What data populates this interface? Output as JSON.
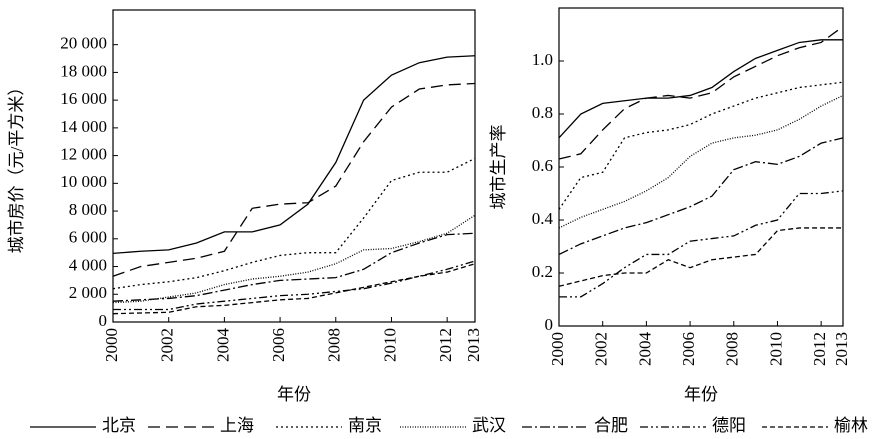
{
  "chart_data": [
    {
      "type": "line",
      "y_label": "城市房价（元/平方米）",
      "x_label": "年份",
      "x": [
        2000,
        2001,
        2002,
        2003,
        2004,
        2005,
        2006,
        2007,
        2008,
        2009,
        2010,
        2011,
        2012,
        2013
      ],
      "xlim": [
        2000,
        2013
      ],
      "xticks": [
        2000,
        2002,
        2004,
        2006,
        2008,
        2010,
        2012,
        2013
      ],
      "ylim": [
        0,
        22500
      ],
      "yticks": [
        0,
        {
          "value": 2000,
          "label": "2 000"
        },
        {
          "value": 4000,
          "label": "4 000"
        },
        {
          "value": 6000,
          "label": "6 000"
        },
        {
          "value": 8000,
          "label": "8 000"
        },
        {
          "value": 10000,
          "label": "10 000"
        },
        {
          "value": 12000,
          "label": "12 000"
        },
        {
          "value": 14000,
          "label": "14 000"
        },
        {
          "value": 16000,
          "label": "16 000"
        },
        {
          "value": 18000,
          "label": "18 000"
        },
        {
          "value": 20000,
          "label": "20 000"
        }
      ],
      "series": [
        {
          "name": "北京",
          "color": "#000000",
          "dash": "none",
          "values": [
            4950,
            5100,
            5200,
            5700,
            6500,
            6500,
            7000,
            8500,
            11500,
            16000,
            17800,
            18700,
            19100,
            19200
          ]
        },
        {
          "name": "上海",
          "color": "#000000",
          "dash": "12,6",
          "values": [
            3300,
            4000,
            4300,
            4600,
            5100,
            8200,
            8500,
            8600,
            9800,
            13000,
            15500,
            16800,
            17100,
            17200
          ]
        },
        {
          "name": "南京",
          "color": "#000000",
          "dash": "2,3",
          "values": [
            2400,
            2700,
            2900,
            3200,
            3700,
            4300,
            4800,
            5000,
            5000,
            7500,
            10200,
            10800,
            10800,
            11800
          ]
        },
        {
          "name": "武汉",
          "color": "#000000",
          "dash": "1,1.5",
          "values": [
            1400,
            1500,
            1800,
            2100,
            2700,
            3100,
            3300,
            3600,
            4200,
            5200,
            5300,
            5800,
            6400,
            7700
          ]
        },
        {
          "name": "合肥",
          "color": "#000000",
          "dash": "10,3,2,3",
          "values": [
            1500,
            1600,
            1700,
            1900,
            2300,
            2700,
            3000,
            3100,
            3200,
            3800,
            5000,
            5700,
            6300,
            6400
          ]
        },
        {
          "name": "德阳",
          "color": "#000000",
          "dash": "8,3,2,3,2,3",
          "values": [
            900,
            900,
            900,
            1300,
            1500,
            1700,
            1900,
            2000,
            2200,
            2400,
            2800,
            3300,
            3800,
            4400
          ]
        },
        {
          "name": "榆林",
          "color": "#000000",
          "dash": "5,3",
          "values": [
            600,
            650,
            700,
            1100,
            1200,
            1400,
            1600,
            1700,
            2100,
            2500,
            2900,
            3300,
            3600,
            4200
          ]
        }
      ]
    },
    {
      "type": "line",
      "y_label": "城市生产率",
      "x_label": "年份",
      "x": [
        2000,
        2001,
        2002,
        2003,
        2004,
        2005,
        2006,
        2007,
        2008,
        2009,
        2010,
        2011,
        2012,
        2013
      ],
      "xlim": [
        2000,
        2013
      ],
      "xticks": [
        2000,
        2002,
        2004,
        2006,
        2008,
        2010,
        2012,
        2013
      ],
      "ylim": [
        0,
        1.2
      ],
      "yticks": [
        0,
        0.2,
        0.4,
        0.6,
        0.8,
        {
          "value": 1,
          "label": "1.0"
        }
      ],
      "series": [
        {
          "color": "#000000",
          "dash": "none",
          "values": [
            0.71,
            0.8,
            0.84,
            0.85,
            0.86,
            0.86,
            0.87,
            0.9,
            0.96,
            1.01,
            1.04,
            1.07,
            1.08,
            1.08
          ]
        },
        {
          "color": "#000000",
          "dash": "12,6",
          "values": [
            0.63,
            0.65,
            0.74,
            0.82,
            0.86,
            0.87,
            0.86,
            0.88,
            0.94,
            0.98,
            1.02,
            1.05,
            1.07,
            1.13
          ]
        },
        {
          "color": "#000000",
          "dash": "2,3",
          "values": [
            0.44,
            0.56,
            0.58,
            0.71,
            0.73,
            0.74,
            0.76,
            0.8,
            0.83,
            0.86,
            0.88,
            0.9,
            0.91,
            0.92
          ]
        },
        {
          "color": "#000000",
          "dash": "1,1.5",
          "values": [
            0.37,
            0.41,
            0.44,
            0.47,
            0.51,
            0.56,
            0.64,
            0.69,
            0.71,
            0.72,
            0.74,
            0.78,
            0.83,
            0.87
          ]
        },
        {
          "color": "#000000",
          "dash": "10,3,2,3",
          "values": [
            0.27,
            0.31,
            0.34,
            0.37,
            0.39,
            0.42,
            0.45,
            0.49,
            0.59,
            0.62,
            0.61,
            0.64,
            0.69,
            0.71
          ]
        },
        {
          "color": "#000000",
          "dash": "8,3,2,3,2,3",
          "values": [
            0.11,
            0.11,
            0.16,
            0.22,
            0.27,
            0.27,
            0.32,
            0.33,
            0.34,
            0.38,
            0.4,
            0.5,
            0.5,
            0.51
          ]
        },
        {
          "color": "#000000",
          "dash": "5,3",
          "values": [
            0.15,
            0.17,
            0.19,
            0.2,
            0.2,
            0.25,
            0.22,
            0.25,
            0.26,
            0.27,
            0.36,
            0.37,
            0.37,
            0.37
          ]
        }
      ]
    }
  ]
}
